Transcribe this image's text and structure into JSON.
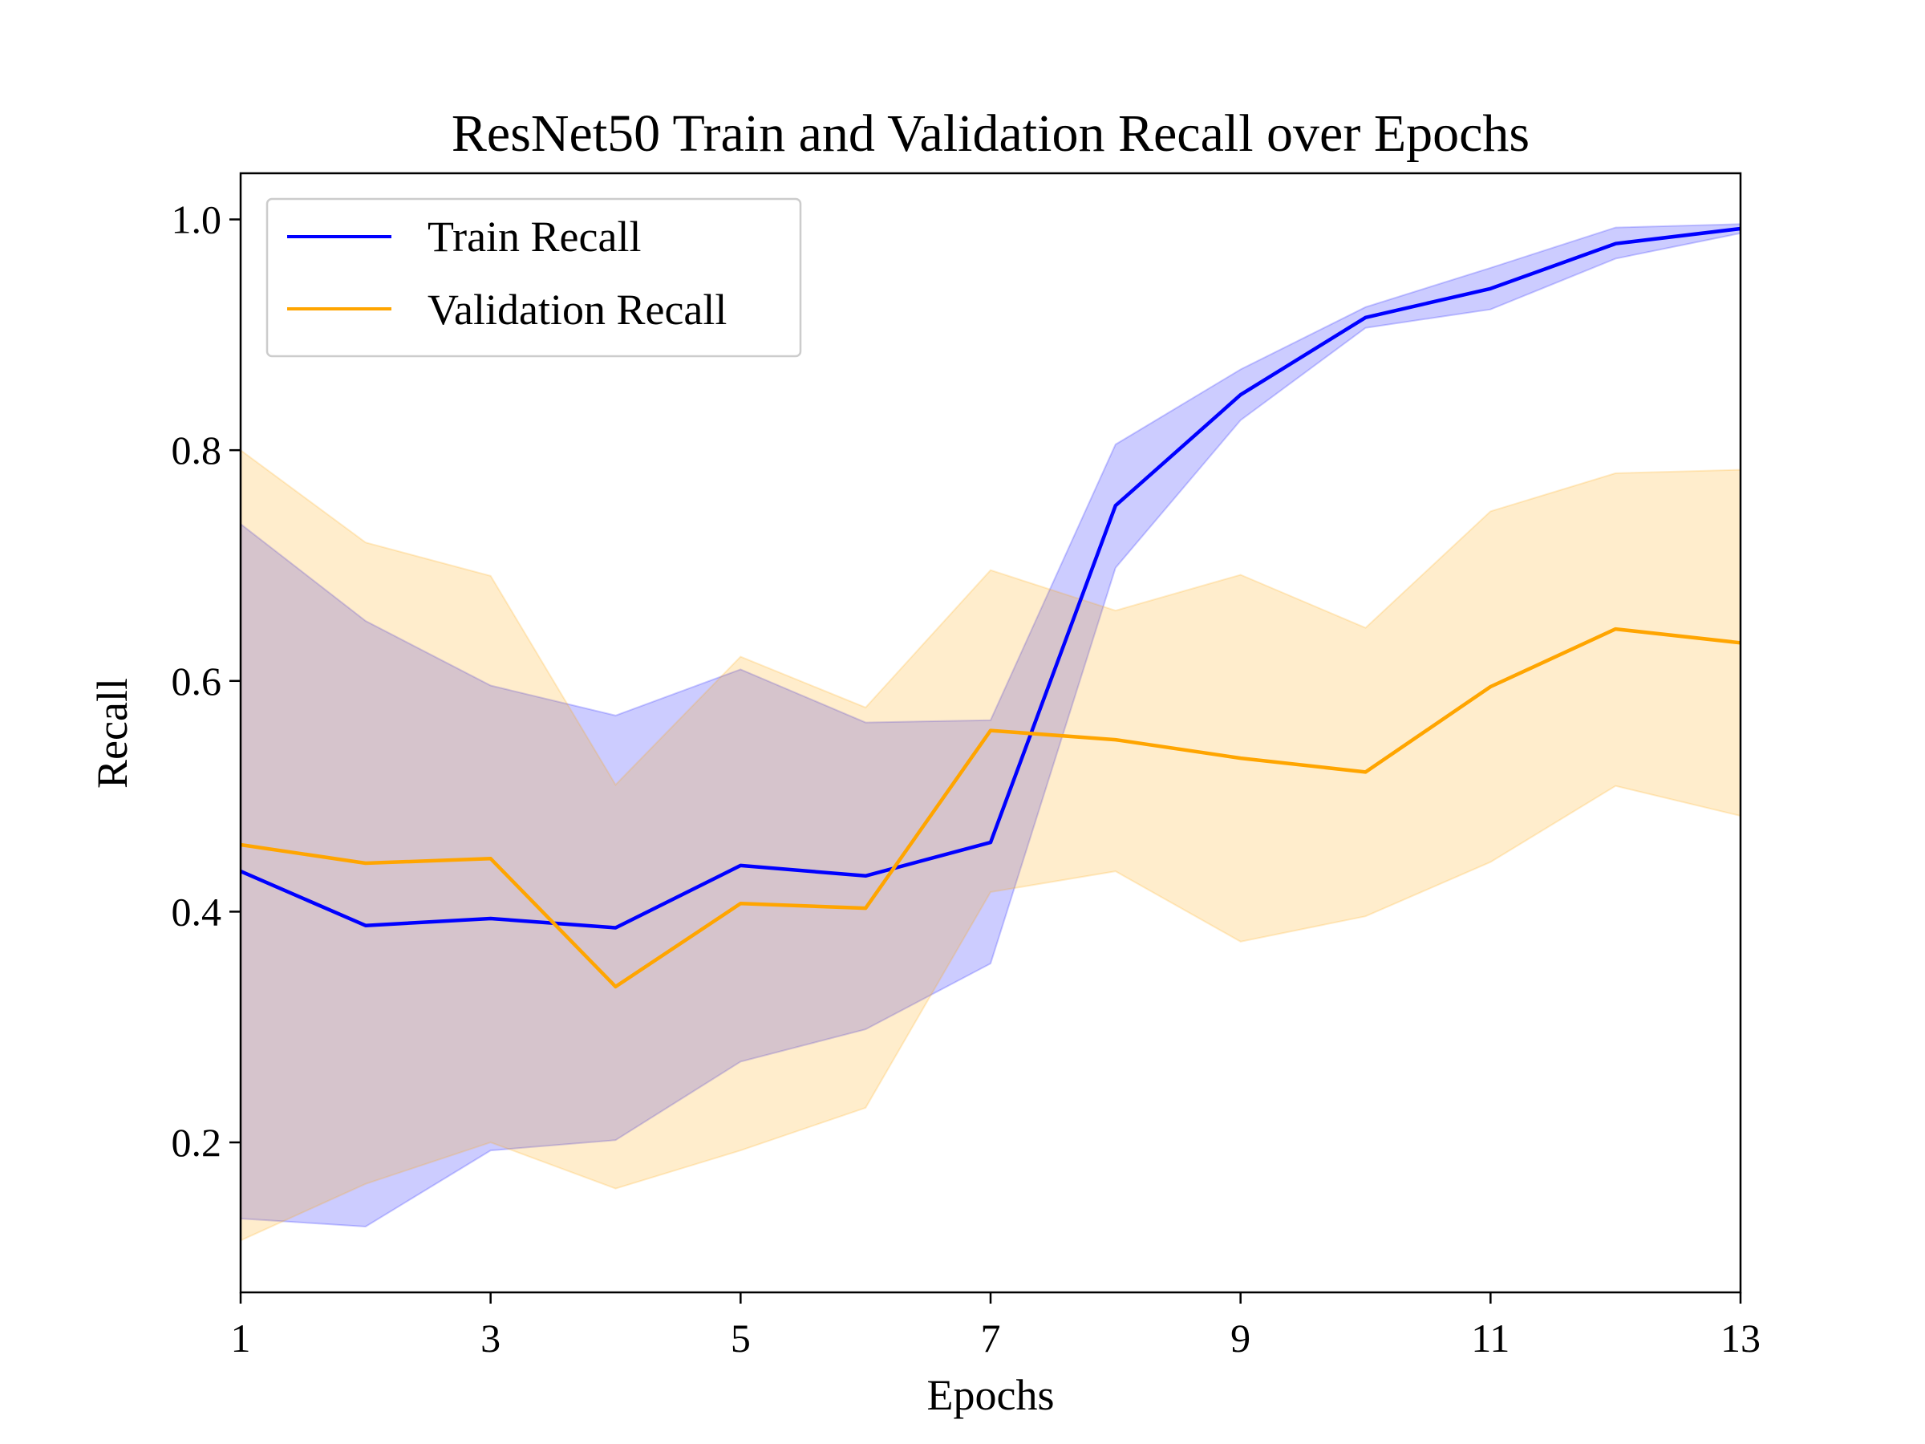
{
  "chart_data": {
    "type": "line",
    "title": "ResNet50 Train and Validation Recall over Epochs",
    "xlabel": "Epochs",
    "ylabel": "Recall",
    "xlim": [
      1,
      13
    ],
    "ylim": [
      0.07,
      1.04
    ],
    "xticks": [
      1,
      3,
      5,
      7,
      9,
      11,
      13
    ],
    "yticks": [
      0.2,
      0.4,
      0.6,
      0.8,
      1.0
    ],
    "grid": false,
    "legend_position": "top-left",
    "x": [
      1,
      2,
      3,
      4,
      5,
      6,
      7,
      8,
      9,
      10,
      11,
      12,
      13
    ],
    "series": [
      {
        "name": "Train Recall",
        "color": "#0000ff",
        "band_color": "#0000ff",
        "values": [
          0.435,
          0.388,
          0.394,
          0.386,
          0.44,
          0.431,
          0.46,
          0.752,
          0.848,
          0.915,
          0.94,
          0.979,
          0.992
        ],
        "upper": [
          0.736,
          0.652,
          0.596,
          0.57,
          0.61,
          0.564,
          0.566,
          0.805,
          0.87,
          0.924,
          0.958,
          0.993,
          0.996
        ],
        "lower": [
          0.134,
          0.127,
          0.193,
          0.202,
          0.27,
          0.298,
          0.355,
          0.698,
          0.826,
          0.906,
          0.922,
          0.966,
          0.988
        ]
      },
      {
        "name": "Validation Recall",
        "color": "#ffa500",
        "band_color": "#ffa500",
        "values": [
          0.458,
          0.442,
          0.446,
          0.335,
          0.407,
          0.403,
          0.557,
          0.549,
          0.533,
          0.521,
          0.595,
          0.645,
          0.633
        ],
        "upper": [
          0.8,
          0.72,
          0.691,
          0.51,
          0.621,
          0.577,
          0.696,
          0.661,
          0.692,
          0.646,
          0.747,
          0.78,
          0.783
        ],
        "lower": [
          0.115,
          0.164,
          0.2,
          0.16,
          0.193,
          0.23,
          0.417,
          0.435,
          0.374,
          0.396,
          0.443,
          0.509,
          0.483
        ]
      }
    ]
  }
}
